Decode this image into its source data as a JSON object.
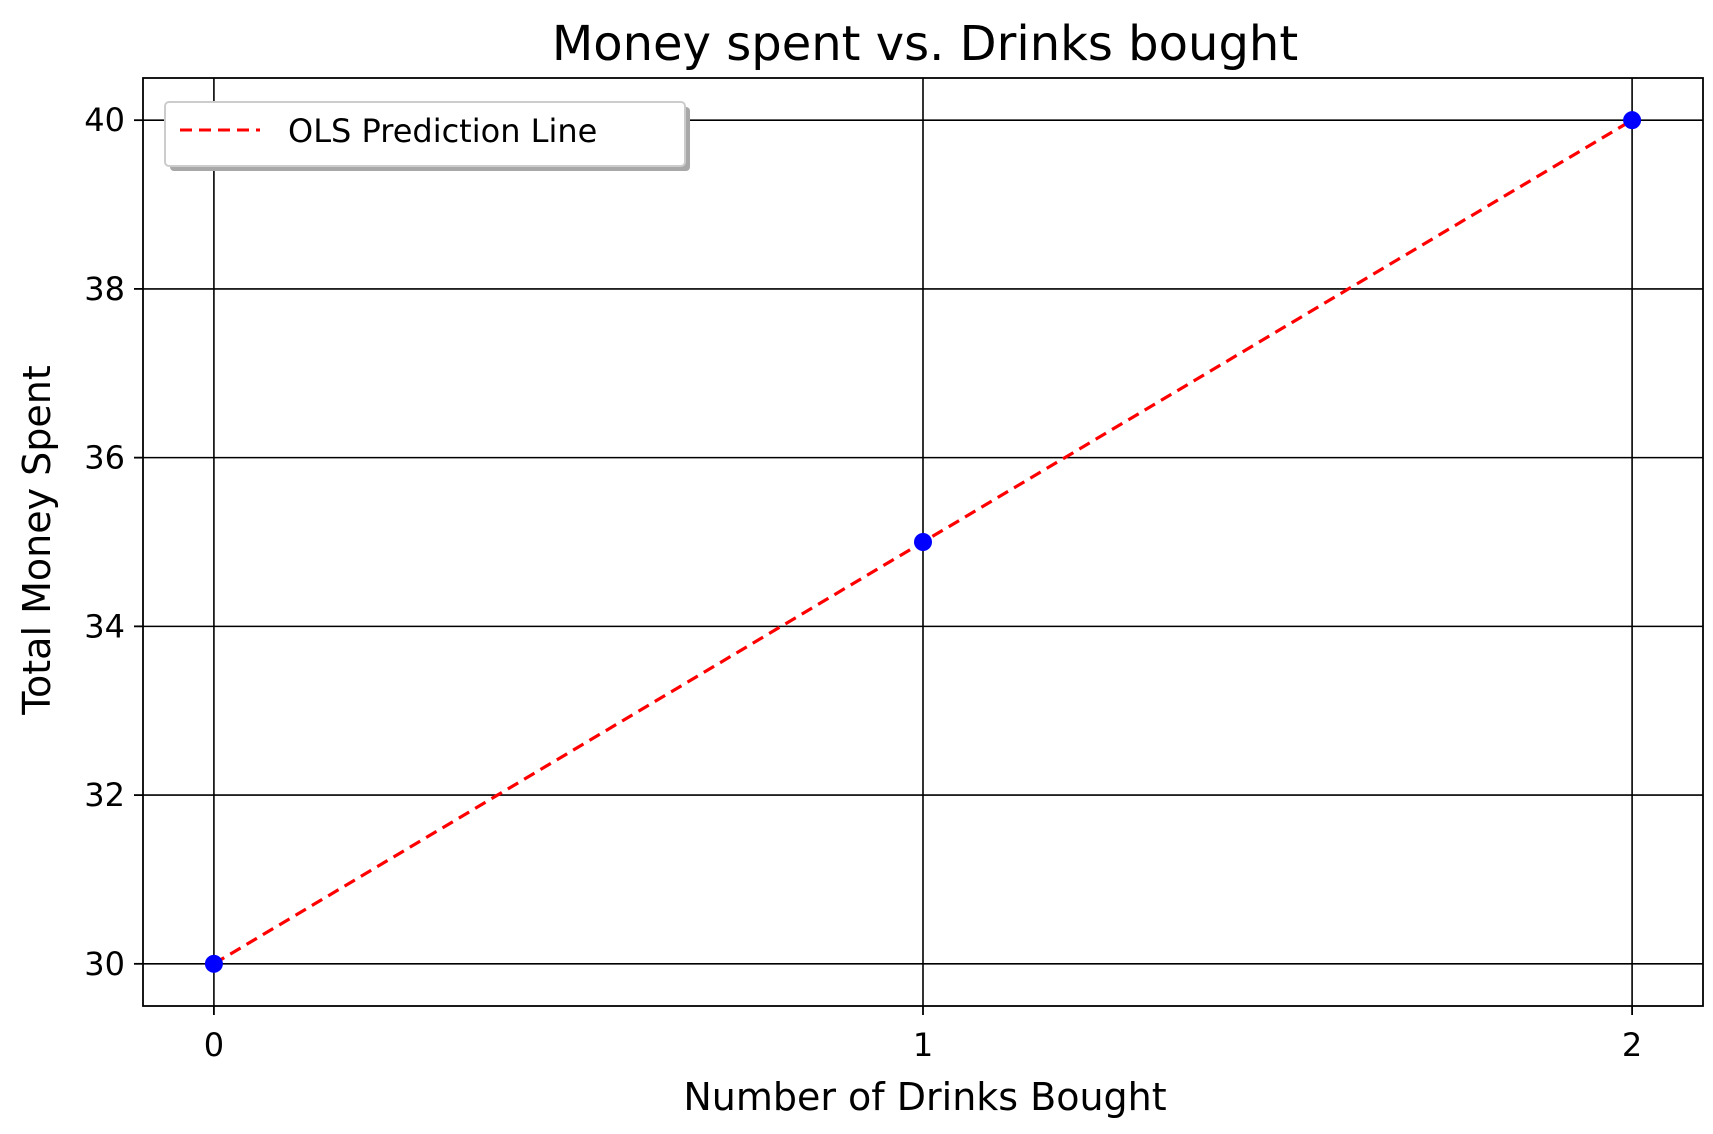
{
  "chart_data": {
    "type": "line",
    "title": "Money spent vs. Drinks bought",
    "xlabel": "Number of Drinks Bought",
    "ylabel": "Total Money Spent",
    "xlim": [
      -0.1,
      2.1
    ],
    "ylim": [
      29.5,
      40.5
    ],
    "x_ticks": [
      0,
      1,
      2
    ],
    "x_tick_labels": [
      "0",
      "1",
      "2"
    ],
    "y_ticks": [
      30,
      32,
      34,
      36,
      38,
      40
    ],
    "y_tick_labels": [
      "30",
      "32",
      "34",
      "36",
      "38",
      "40"
    ],
    "grid": true,
    "legend_position": "top-left",
    "series": [
      {
        "kind": "scatter",
        "x": [
          0,
          1,
          2
        ],
        "y": [
          30,
          35,
          40
        ],
        "color": "#0000ff"
      },
      {
        "kind": "line",
        "name": "OLS Prediction Line",
        "style": "dashed",
        "x": [
          0,
          1,
          2
        ],
        "y": [
          30,
          35,
          40
        ],
        "color": "#ff0000"
      }
    ]
  }
}
